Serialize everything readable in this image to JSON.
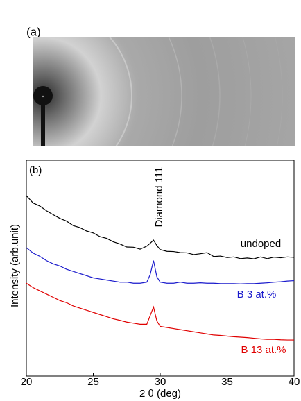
{
  "panel_a": {
    "label": "(a)"
  },
  "chart_data": {
    "type": "line",
    "panel_label": "(b)",
    "xlabel": "2 θ (deg)",
    "ylabel": "Intensity (arb.unit)",
    "annotation": "Diamond 111",
    "xlim": [
      20,
      40
    ],
    "xticks": [
      20,
      25,
      30,
      35,
      40
    ],
    "ylim": [
      0,
      10
    ],
    "x": [
      20,
      20.5,
      21,
      21.5,
      22,
      22.5,
      23,
      23.5,
      24,
      24.5,
      25,
      25.5,
      26,
      26.5,
      27,
      27.5,
      28,
      28.5,
      29,
      29.25,
      29.5,
      29.75,
      30,
      30.5,
      31,
      31.5,
      32,
      32.5,
      33,
      33.5,
      34,
      34.5,
      35,
      35.5,
      36,
      36.5,
      37,
      37.5,
      38,
      38.5,
      39,
      39.5,
      40
    ],
    "series": [
      {
        "name": "undoped",
        "color": "#000000",
        "values": [
          8.36,
          8.02,
          7.88,
          7.66,
          7.48,
          7.31,
          7.18,
          6.97,
          6.88,
          6.72,
          6.63,
          6.46,
          6.38,
          6.22,
          6.12,
          5.98,
          5.97,
          5.88,
          6.02,
          6.15,
          6.3,
          6.05,
          5.86,
          5.78,
          5.77,
          5.72,
          5.71,
          5.63,
          5.67,
          5.72,
          5.54,
          5.56,
          5.49,
          5.52,
          5.44,
          5.47,
          5.43,
          5.52,
          5.44,
          5.51,
          5.48,
          5.52,
          5.5
        ]
      },
      {
        "name": "B 3 at.%",
        "color": "#1a1acc",
        "values": [
          5.95,
          5.7,
          5.55,
          5.35,
          5.2,
          5.1,
          4.95,
          4.85,
          4.75,
          4.65,
          4.55,
          4.5,
          4.45,
          4.4,
          4.35,
          4.35,
          4.3,
          4.3,
          4.35,
          4.7,
          5.35,
          4.6,
          4.35,
          4.3,
          4.3,
          4.35,
          4.3,
          4.3,
          4.32,
          4.3,
          4.3,
          4.28,
          4.28,
          4.28,
          4.27,
          4.28,
          4.28,
          4.3,
          4.32,
          4.35,
          4.37,
          4.4,
          4.42
        ]
      },
      {
        "name": "B 13 at.%",
        "color": "#e00000",
        "values": [
          4.3,
          4.1,
          3.95,
          3.8,
          3.65,
          3.5,
          3.4,
          3.25,
          3.15,
          3.05,
          2.95,
          2.85,
          2.75,
          2.65,
          2.58,
          2.5,
          2.45,
          2.4,
          2.4,
          2.8,
          3.2,
          2.55,
          2.3,
          2.25,
          2.2,
          2.15,
          2.1,
          2.05,
          2.0,
          1.95,
          1.9,
          1.88,
          1.85,
          1.82,
          1.8,
          1.78,
          1.75,
          1.72,
          1.7,
          1.7,
          1.68,
          1.67,
          1.67
        ]
      }
    ]
  }
}
